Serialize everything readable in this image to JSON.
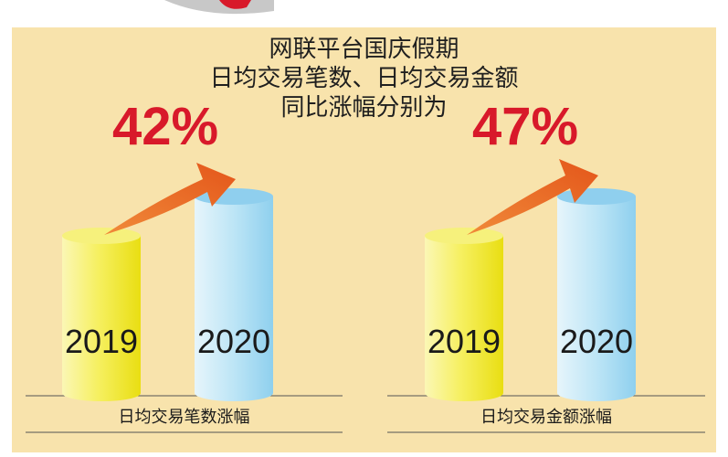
{
  "title_lines": [
    "网联平台国庆假期",
    "日均交易笔数、日均交易金额",
    "同比涨幅分别为"
  ],
  "colors": {
    "background": "#f8e3ac",
    "bar_2019": "#f3ee4a",
    "bar_2020": "#a9dcf2",
    "arrow": "#e8631a",
    "percent": "#d8192a"
  },
  "chart_data": [
    {
      "type": "bar",
      "categories": [
        "2019",
        "2020"
      ],
      "growth_percent": 42,
      "growth_label": "42%",
      "caption": "日均交易笔数涨幅"
    },
    {
      "type": "bar",
      "categories": [
        "2019",
        "2020"
      ],
      "growth_percent": 47,
      "growth_label": "47%",
      "caption": "日均交易金额涨幅"
    }
  ]
}
